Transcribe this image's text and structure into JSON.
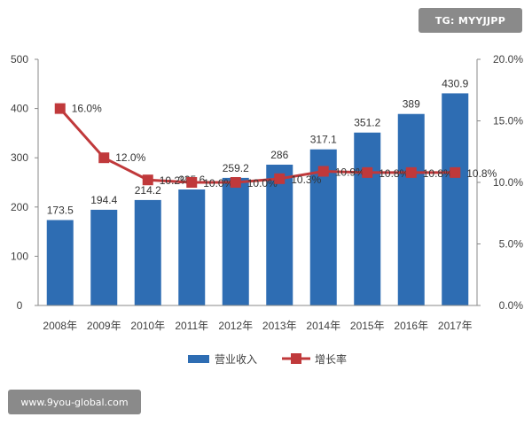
{
  "watermarks": {
    "top_right": "TG: MYYJJPP",
    "bottom_left": "www.9you-global.com"
  },
  "chart_data": {
    "type": "bar",
    "categories": [
      "2008年",
      "2009年",
      "2010年",
      "2011年",
      "2012年",
      "2013年",
      "2014年",
      "2015年",
      "2016年",
      "2017年"
    ],
    "series": [
      {
        "name": "营业收入",
        "type": "bar",
        "axis": "left",
        "color": "#2e6db3",
        "values": [
          173.5,
          194.4,
          214.2,
          235.6,
          259.2,
          286,
          317.1,
          351.2,
          389,
          430.9
        ],
        "labels": [
          "173.5",
          "194.4",
          "214.2",
          "235.6",
          "259.2",
          "286",
          "317.1",
          "351.2",
          "389",
          "430.9"
        ]
      },
      {
        "name": "增长率",
        "type": "line",
        "axis": "right",
        "color": "#c0393b",
        "values": [
          16.0,
          12.0,
          10.2,
          10.0,
          10.0,
          10.3,
          10.9,
          10.8,
          10.8,
          10.8
        ],
        "labels": [
          "16.0%",
          "12.0%",
          "10.2%",
          "10.0%",
          "10.0%",
          "10.3%",
          "10.9%",
          "10.8%",
          "10.8%",
          "10.8%"
        ]
      }
    ],
    "y_left": {
      "min": 0,
      "max": 500,
      "ticks": [
        "0",
        "100",
        "200",
        "300",
        "400",
        "500"
      ]
    },
    "y_right": {
      "min": 0,
      "max": 20,
      "ticks": [
        "0.0%",
        "5.0%",
        "10.0%",
        "15.0%",
        "20.0%"
      ]
    },
    "grid": false,
    "legend_position": "bottom"
  }
}
